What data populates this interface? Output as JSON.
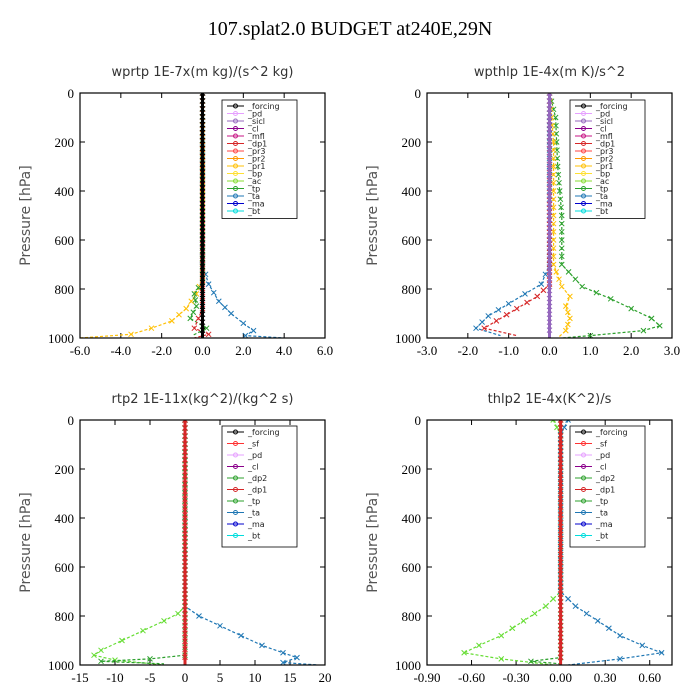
{
  "figure_title": "107.splat2.0  BUDGET at240E,29N",
  "chart_data": [
    {
      "type": "line",
      "title": "wprtp  1E-7x(m kg)/(s^2 kg)",
      "ylabel": "Pressure [hPa]",
      "ylim": [
        1000,
        0
      ],
      "xlim": [
        -6,
        6
      ],
      "xticks": [
        "-6.0",
        "-4.0",
        "-2.0",
        "0.0",
        "2.0",
        "4.0",
        "6.0"
      ],
      "yticks": [
        "0",
        "200",
        "400",
        "600",
        "800",
        "1000"
      ],
      "legend_position": "top-right",
      "legend": [
        "_forcing",
        "_pd",
        "_sicl",
        "_cl",
        "_mfl",
        "_dp1",
        "_pr3",
        "_pr2",
        "_pr1",
        "_bp",
        "_ac",
        "_tp",
        "_ta",
        "_ma",
        "_bt"
      ],
      "series": [
        {
          "name": "_tp",
          "color": "#1f77b4",
          "points": [
            [
              0,
              0
            ],
            [
              0,
              700
            ],
            [
              0.3,
              780
            ],
            [
              0.8,
              850
            ],
            [
              1.4,
              900
            ],
            [
              2.0,
              940
            ],
            [
              2.5,
              970
            ],
            [
              2.1,
              990
            ],
            [
              4.0,
              1000
            ]
          ]
        },
        {
          "name": "_pr1",
          "color": "#ffc107",
          "points": [
            [
              0,
              0
            ],
            [
              0,
              760
            ],
            [
              -0.3,
              820
            ],
            [
              -0.8,
              880
            ],
            [
              -1.5,
              930
            ],
            [
              -2.5,
              960
            ],
            [
              -3.5,
              985
            ],
            [
              -6.0,
              1000
            ]
          ]
        },
        {
          "name": "_ac",
          "color": "#2ca02c",
          "points": [
            [
              0,
              0
            ],
            [
              0,
              770
            ],
            [
              -0.4,
              820
            ],
            [
              -0.3,
              870
            ],
            [
              -0.6,
              920
            ],
            [
              0.2,
              960
            ],
            [
              -0.5,
              990
            ]
          ]
        },
        {
          "name": "_dp1",
          "color": "#d62728",
          "points": [
            [
              0,
              0
            ],
            [
              0,
              880
            ],
            [
              -0.2,
              920
            ],
            [
              -0.4,
              960
            ],
            [
              0.3,
              985
            ],
            [
              -0.4,
              1000
            ]
          ]
        },
        {
          "name": "_forcing",
          "color": "#000000",
          "points": [
            [
              0,
              0
            ],
            [
              0,
              1000
            ]
          ]
        }
      ]
    },
    {
      "type": "line",
      "title": "wpthlp  1E-4x(m K)/s^2",
      "ylabel": "Pressure [hPa]",
      "ylim": [
        1000,
        0
      ],
      "xlim": [
        -3,
        3
      ],
      "xticks": [
        "-3.0",
        "-2.0",
        "-1.0",
        "0.0",
        "1.0",
        "2.0",
        "3.0"
      ],
      "yticks": [
        "0",
        "200",
        "400",
        "600",
        "800",
        "1000"
      ],
      "legend_position": "top-right",
      "legend": [
        "_forcing",
        "_pd",
        "_sicl",
        "_cl",
        "_mfl",
        "_dp1",
        "_pr3",
        "_pr2",
        "_pr1",
        "_bp",
        "_ac",
        "_tp",
        "_ta",
        "_ma",
        "_bt"
      ],
      "series": [
        {
          "name": "_ac",
          "color": "#2ca02c",
          "points": [
            [
              0,
              0
            ],
            [
              0.15,
              100
            ],
            [
              0.2,
              300
            ],
            [
              0.3,
              500
            ],
            [
              0.3,
              700
            ],
            [
              0.8,
              790
            ],
            [
              1.5,
              840
            ],
            [
              2.0,
              880
            ],
            [
              2.5,
              920
            ],
            [
              2.7,
              950
            ],
            [
              2.3,
              970
            ],
            [
              1.0,
              990
            ],
            [
              0.3,
              1000
            ]
          ]
        },
        {
          "name": "_pr1",
          "color": "#ffc107",
          "points": [
            [
              0,
              0
            ],
            [
              0.1,
              200
            ],
            [
              0.1,
              700
            ],
            [
              0.3,
              790
            ],
            [
              0.5,
              830
            ],
            [
              0.4,
              870
            ],
            [
              0.5,
              920
            ],
            [
              0.4,
              970
            ],
            [
              0.2,
              1000
            ]
          ]
        },
        {
          "name": "_tp",
          "color": "#1f77b4",
          "points": [
            [
              0,
              0
            ],
            [
              0,
              700
            ],
            [
              -0.2,
              780
            ],
            [
              -0.6,
              820
            ],
            [
              -1.0,
              860
            ],
            [
              -1.5,
              910
            ],
            [
              -1.8,
              960
            ],
            [
              -1.2,
              990
            ]
          ]
        },
        {
          "name": "_dp1",
          "color": "#d62728",
          "points": [
            [
              0,
              0
            ],
            [
              0,
              780
            ],
            [
              -0.3,
              830
            ],
            [
              -0.8,
              880
            ],
            [
              -1.3,
              930
            ],
            [
              -1.6,
              960
            ],
            [
              -0.8,
              990
            ]
          ]
        },
        {
          "name": "_forcing",
          "color": "#9467bd",
          "points": [
            [
              0,
              0
            ],
            [
              0,
              1000
            ]
          ]
        }
      ]
    },
    {
      "type": "line",
      "title": "rtp2  1E-11x(kg^2)/(kg^2 s)",
      "ylabel": "Pressure [hPa]",
      "ylim": [
        1000,
        0
      ],
      "xlim": [
        -15,
        20
      ],
      "xticks": [
        "-15",
        "-10",
        "-5",
        "0",
        "5",
        "10",
        "15",
        "20"
      ],
      "yticks": [
        "0",
        "200",
        "400",
        "600",
        "800",
        "1000"
      ],
      "legend_position": "top-right",
      "legend": [
        "_forcing",
        "_sf",
        "_pd",
        "_cl",
        "_dp2",
        "_dp1",
        "_tp",
        "_ta",
        "_ma",
        "_bt"
      ],
      "series": [
        {
          "name": "_dp1",
          "color": "#66dd33",
          "points": [
            [
              0,
              0
            ],
            [
              0,
              760
            ],
            [
              -1,
              790
            ],
            [
              -3,
              820
            ],
            [
              -6,
              860
            ],
            [
              -9,
              900
            ],
            [
              -12,
              940
            ],
            [
              -13,
              960
            ],
            [
              -10,
              980
            ],
            [
              -3,
              1000
            ]
          ]
        },
        {
          "name": "_tp",
          "color": "#1f77b4",
          "points": [
            [
              0,
              0
            ],
            [
              0,
              760
            ],
            [
              2,
              800
            ],
            [
              5,
              840
            ],
            [
              8,
              880
            ],
            [
              11,
              920
            ],
            [
              14,
              950
            ],
            [
              16,
              970
            ],
            [
              14,
              990
            ],
            [
              19,
              1000
            ]
          ]
        },
        {
          "name": "_dp2",
          "color": "#2ca02c",
          "points": [
            [
              0,
              0
            ],
            [
              0,
              960
            ],
            [
              -5,
              975
            ],
            [
              -12,
              985
            ],
            [
              -3,
              995
            ]
          ]
        },
        {
          "name": "_forcing",
          "color": "#d62728",
          "points": [
            [
              0,
              0
            ],
            [
              0,
              1000
            ]
          ]
        }
      ]
    },
    {
      "type": "line",
      "title": "thlp2  1E-4x(K^2)/s",
      "ylabel": "Pressure [hPa]",
      "ylim": [
        1000,
        0
      ],
      "xlim": [
        -0.9,
        0.75
      ],
      "xticks": [
        "-0.90",
        "-0.60",
        "-0.30",
        "0.00",
        "0.30",
        "0.60"
      ],
      "yticks": [
        "0",
        "200",
        "400",
        "600",
        "800",
        "1000"
      ],
      "legend_position": "top-right",
      "legend": [
        "_forcing",
        "_sf",
        "_pd",
        "_cl",
        "_dp2",
        "_dp1",
        "_tp",
        "_ta",
        "_ma",
        "_bt"
      ],
      "series": [
        {
          "name": "_dp1",
          "color": "#66dd33",
          "points": [
            [
              -0.05,
              0
            ],
            [
              0,
              60
            ],
            [
              0,
              700
            ],
            [
              -0.1,
              760
            ],
            [
              -0.25,
              820
            ],
            [
              -0.4,
              880
            ],
            [
              -0.55,
              920
            ],
            [
              -0.65,
              950
            ],
            [
              -0.4,
              975
            ],
            [
              -0.05,
              1000
            ]
          ]
        },
        {
          "name": "_tp",
          "color": "#1f77b4",
          "points": [
            [
              0.05,
              0
            ],
            [
              0,
              60
            ],
            [
              0,
              700
            ],
            [
              0.1,
              760
            ],
            [
              0.25,
              820
            ],
            [
              0.4,
              880
            ],
            [
              0.55,
              920
            ],
            [
              0.68,
              950
            ],
            [
              0.4,
              975
            ],
            [
              0.05,
              1000
            ]
          ]
        },
        {
          "name": "_dp2",
          "color": "#2ca02c",
          "points": [
            [
              0,
              0
            ],
            [
              0,
              970
            ],
            [
              -0.2,
              985
            ],
            [
              0,
              995
            ]
          ]
        },
        {
          "name": "_forcing",
          "color": "#d62728",
          "points": [
            [
              0,
              0
            ],
            [
              0,
              1000
            ]
          ]
        }
      ]
    }
  ]
}
